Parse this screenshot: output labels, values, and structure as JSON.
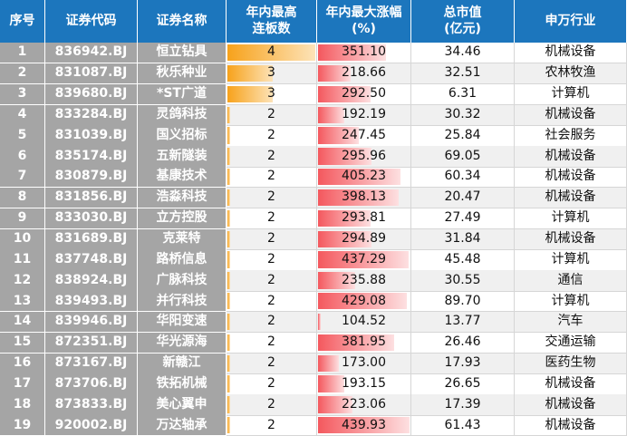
{
  "table": {
    "header": [
      "序号",
      "证券代码",
      "证券名称",
      "年内最高\n连板数",
      "年内最大涨幅\n(%)",
      "总市值\n(亿元)",
      "申万行业"
    ],
    "rows": [
      [
        "1",
        "836942.BJ",
        "恒立钻具",
        "4",
        "351.10",
        "34.46",
        "机械设备"
      ],
      [
        "2",
        "831087.BJ",
        "秋乐种业",
        "3",
        "218.66",
        "32.51",
        "农林牧渔"
      ],
      [
        "3",
        "839680.BJ",
        "*ST广道",
        "3",
        "292.50",
        "6.31",
        "计算机"
      ],
      [
        "4",
        "833284.BJ",
        "灵鸽科技",
        "2",
        "192.19",
        "30.32",
        "机械设备"
      ],
      [
        "5",
        "831039.BJ",
        "国义招标",
        "2",
        "247.45",
        "25.84",
        "社会服务"
      ],
      [
        "6",
        "835174.BJ",
        "五新隧装",
        "2",
        "295.96",
        "69.05",
        "机械设备"
      ],
      [
        "7",
        "830879.BJ",
        "基康技术",
        "2",
        "405.23",
        "60.34",
        "机械设备"
      ],
      [
        "8",
        "831856.BJ",
        "浩淼科技",
        "2",
        "398.13",
        "20.47",
        "机械设备"
      ],
      [
        "9",
        "833030.BJ",
        "立方控股",
        "2",
        "293.81",
        "27.49",
        "计算机"
      ],
      [
        "10",
        "831689.BJ",
        "克莱特",
        "2",
        "294.89",
        "31.84",
        "机械设备"
      ],
      [
        "11",
        "837748.BJ",
        "路桥信息",
        "2",
        "437.29",
        "45.48",
        "计算机"
      ],
      [
        "12",
        "838924.BJ",
        "广脉科技",
        "2",
        "235.88",
        "30.55",
        "通信"
      ],
      [
        "13",
        "839493.BJ",
        "并行科技",
        "2",
        "429.08",
        "89.70",
        "计算机"
      ],
      [
        "14",
        "839946.BJ",
        "华阳变速",
        "2",
        "104.52",
        "13.77",
        "汽车"
      ],
      [
        "15",
        "872351.BJ",
        "华光源海",
        "2",
        "381.95",
        "26.46",
        "交通运输"
      ],
      [
        "16",
        "873167.BJ",
        "新赣江",
        "2",
        "173.00",
        "17.93",
        "医药生物"
      ],
      [
        "17",
        "873706.BJ",
        "铁拓机械",
        "2",
        "193.15",
        "26.65",
        "机械设备"
      ],
      [
        "18",
        "873833.BJ",
        "美心翼申",
        "2",
        "223.06",
        "17.39",
        "机械设备"
      ],
      [
        "19",
        "920002.BJ",
        "万达轴承",
        "2",
        "439.93",
        "61.43",
        "机械设备"
      ]
    ]
  }
}
